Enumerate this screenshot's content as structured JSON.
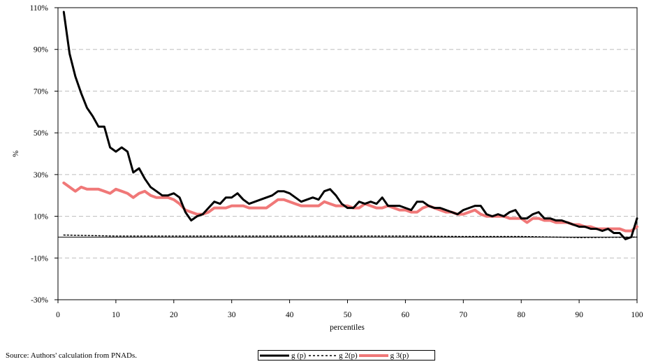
{
  "chart_data": {
    "type": "line",
    "title": "",
    "xlabel": "percentiles",
    "ylabel": "%",
    "xlim": [
      0,
      100
    ],
    "ylim": [
      -30,
      110
    ],
    "x_ticks": [
      0,
      10,
      20,
      30,
      40,
      50,
      60,
      70,
      80,
      90,
      100
    ],
    "y_ticks": [
      -30,
      -10,
      10,
      30,
      50,
      70,
      90,
      110
    ],
    "y_tick_labels": [
      "-30%",
      "-10%",
      "10%",
      "30%",
      "50%",
      "70%",
      "90%",
      "110%"
    ],
    "grid": "horizontal dashed",
    "legend_position": "bottom",
    "series": [
      {
        "name": "g (p)",
        "color": "#000000",
        "style": "solid-thick",
        "x": [
          1,
          2,
          3,
          4,
          5,
          6,
          7,
          8,
          9,
          10,
          11,
          12,
          13,
          14,
          15,
          16,
          17,
          18,
          19,
          20,
          21,
          22,
          23,
          24,
          25,
          26,
          27,
          28,
          29,
          30,
          31,
          32,
          33,
          34,
          35,
          36,
          37,
          38,
          39,
          40,
          41,
          42,
          43,
          44,
          45,
          46,
          47,
          48,
          49,
          50,
          51,
          52,
          53,
          54,
          55,
          56,
          57,
          58,
          59,
          60,
          61,
          62,
          63,
          64,
          65,
          66,
          67,
          68,
          69,
          70,
          71,
          72,
          73,
          74,
          75,
          76,
          77,
          78,
          79,
          80,
          81,
          82,
          83,
          84,
          85,
          86,
          87,
          88,
          89,
          90,
          91,
          92,
          93,
          94,
          95,
          96,
          97,
          98,
          99,
          100
        ],
        "values": [
          108,
          88,
          77,
          69,
          62,
          58,
          53,
          53,
          43,
          41,
          43,
          41,
          31,
          33,
          28,
          24,
          22,
          20,
          20,
          21,
          19,
          12,
          8,
          10,
          11,
          14,
          17,
          16,
          19,
          19,
          21,
          18,
          16,
          17,
          18,
          19,
          20,
          22,
          22,
          21,
          19,
          17,
          18,
          19,
          18,
          22,
          23,
          20,
          16,
          14,
          14,
          17,
          16,
          17,
          16,
          19,
          15,
          15,
          15,
          14,
          13,
          17,
          17,
          15,
          14,
          14,
          13,
          12,
          11,
          13,
          14,
          15,
          15,
          11,
          10,
          11,
          10,
          12,
          13,
          9,
          9,
          11,
          12,
          9,
          9,
          8,
          8,
          7,
          6,
          5,
          5,
          4,
          4,
          3,
          4,
          2,
          2,
          -1,
          0,
          9
        ]
      },
      {
        "name": "g 2(p)",
        "color": "#000000",
        "style": "dotted",
        "x": [
          1,
          10,
          20,
          30,
          40,
          50,
          60,
          70,
          80,
          90,
          100
        ],
        "values": [
          1,
          0.5,
          0.5,
          0.5,
          0.5,
          0.5,
          0.5,
          0.3,
          0.3,
          -0.2,
          0
        ]
      },
      {
        "name": "g 3(p)",
        "color": "#f07878",
        "style": "solid-thick",
        "x": [
          1,
          2,
          3,
          4,
          5,
          6,
          7,
          8,
          9,
          10,
          11,
          12,
          13,
          14,
          15,
          16,
          17,
          18,
          19,
          20,
          21,
          22,
          23,
          24,
          25,
          26,
          27,
          28,
          29,
          30,
          31,
          32,
          33,
          34,
          35,
          36,
          37,
          38,
          39,
          40,
          41,
          42,
          43,
          44,
          45,
          46,
          47,
          48,
          49,
          50,
          51,
          52,
          53,
          54,
          55,
          56,
          57,
          58,
          59,
          60,
          61,
          62,
          63,
          64,
          65,
          66,
          67,
          68,
          69,
          70,
          71,
          72,
          73,
          74,
          75,
          76,
          77,
          78,
          79,
          80,
          81,
          82,
          83,
          84,
          85,
          86,
          87,
          88,
          89,
          90,
          91,
          92,
          93,
          94,
          95,
          96,
          97,
          98,
          99,
          100
        ],
        "values": [
          26,
          24,
          22,
          24,
          23,
          23,
          23,
          22,
          21,
          23,
          22,
          21,
          19,
          21,
          22,
          20,
          19,
          19,
          19,
          18,
          16,
          13,
          12,
          11,
          11,
          12,
          14,
          14,
          14,
          15,
          15,
          15,
          14,
          14,
          14,
          14,
          16,
          18,
          18,
          17,
          16,
          15,
          15,
          15,
          15,
          17,
          16,
          15,
          15,
          15,
          14,
          14,
          16,
          15,
          14,
          14,
          15,
          14,
          13,
          13,
          12,
          12,
          14,
          15,
          14,
          13,
          12,
          12,
          11,
          11,
          12,
          13,
          11,
          10,
          10,
          10,
          10,
          9,
          9,
          9,
          7,
          9,
          9,
          8,
          8,
          7,
          7,
          7,
          6,
          6,
          5,
          5,
          4,
          4,
          4,
          4,
          4,
          3,
          3,
          5
        ]
      }
    ]
  },
  "source_note": "Source: Authors' calculation from PNADs."
}
